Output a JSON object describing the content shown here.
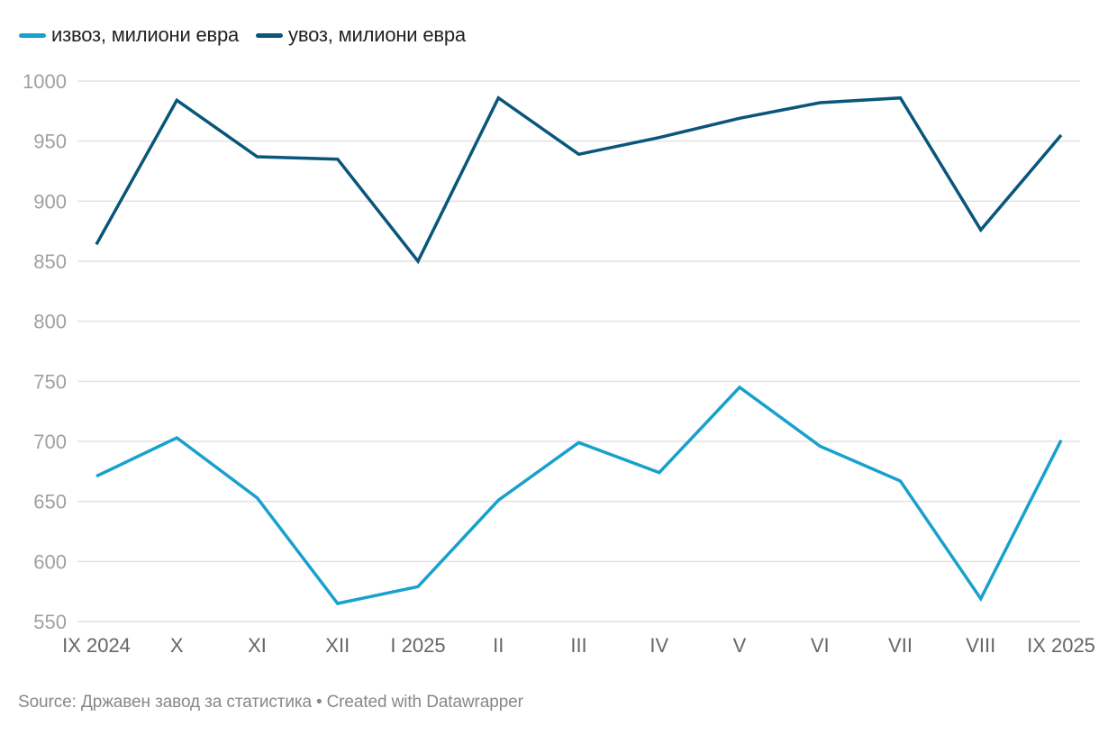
{
  "chart_data": {
    "type": "line",
    "title": "",
    "xlabel": "",
    "ylabel": "",
    "categories": [
      "IX 2024",
      "X",
      "XI",
      "XII",
      "I 2025",
      "II",
      "III",
      "IV",
      "V",
      "VI",
      "VII",
      "VIII",
      "IX 2025"
    ],
    "series": [
      {
        "name": "извоз, милиони евра",
        "color": "#18a1cd",
        "values": [
          671,
          703,
          653,
          565,
          579,
          651,
          699,
          674,
          745,
          696,
          667,
          569,
          701
        ]
      },
      {
        "name": "увоз, милиони евра",
        "color": "#09567a",
        "values": [
          864,
          984,
          937,
          935,
          850,
          986,
          939,
          953,
          969,
          982,
          986,
          876,
          955
        ]
      }
    ],
    "ylim": [
      550,
      1000
    ],
    "yticks": [
      "550",
      "600",
      "650",
      "700",
      "750",
      "800",
      "850",
      "900",
      "950",
      "1000"
    ],
    "grid": true,
    "legend_position": "top-left"
  },
  "footer": {
    "source": "Source: Државен завод за статистика",
    "separator": "•",
    "credit": "Created with Datawrapper"
  }
}
